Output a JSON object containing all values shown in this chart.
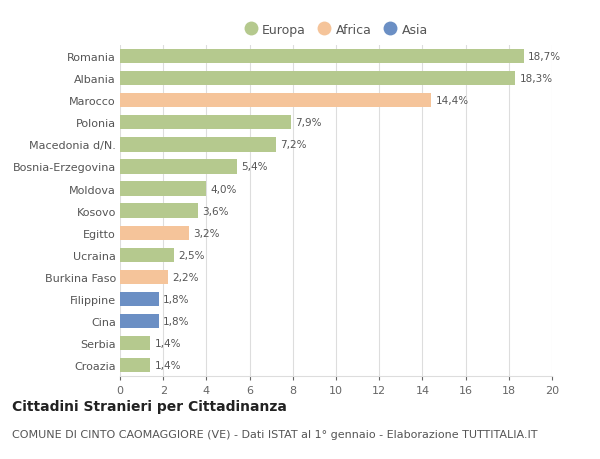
{
  "categories": [
    "Croazia",
    "Serbia",
    "Cina",
    "Filippine",
    "Burkina Faso",
    "Ucraina",
    "Egitto",
    "Kosovo",
    "Moldova",
    "Bosnia-Erzegovina",
    "Macedonia d/N.",
    "Polonia",
    "Marocco",
    "Albania",
    "Romania"
  ],
  "values": [
    1.4,
    1.4,
    1.8,
    1.8,
    2.2,
    2.5,
    3.2,
    3.6,
    4.0,
    5.4,
    7.2,
    7.9,
    14.4,
    18.3,
    18.7
  ],
  "labels": [
    "1,4%",
    "1,4%",
    "1,8%",
    "1,8%",
    "2,2%",
    "2,5%",
    "3,2%",
    "3,6%",
    "4,0%",
    "5,4%",
    "7,2%",
    "7,9%",
    "14,4%",
    "18,3%",
    "18,7%"
  ],
  "continents": [
    "Europa",
    "Europa",
    "Asia",
    "Asia",
    "Africa",
    "Europa",
    "Africa",
    "Europa",
    "Europa",
    "Europa",
    "Europa",
    "Europa",
    "Africa",
    "Europa",
    "Europa"
  ],
  "colors": {
    "Europa": "#b5c98e",
    "Africa": "#f5c49a",
    "Asia": "#6b8fc4"
  },
  "xlim": [
    0,
    20
  ],
  "xticks": [
    0,
    2,
    4,
    6,
    8,
    10,
    12,
    14,
    16,
    18,
    20
  ],
  "title": "Cittadini Stranieri per Cittadinanza",
  "subtitle": "COMUNE DI CINTO CAOMAGGIORE (VE) - Dati ISTAT al 1° gennaio - Elaborazione TUTTITALIA.IT",
  "bg_color": "#ffffff",
  "grid_color": "#dddddd",
  "bar_height": 0.65,
  "title_fontsize": 10,
  "subtitle_fontsize": 8,
  "label_fontsize": 7.5,
  "tick_fontsize": 8,
  "legend_fontsize": 9
}
